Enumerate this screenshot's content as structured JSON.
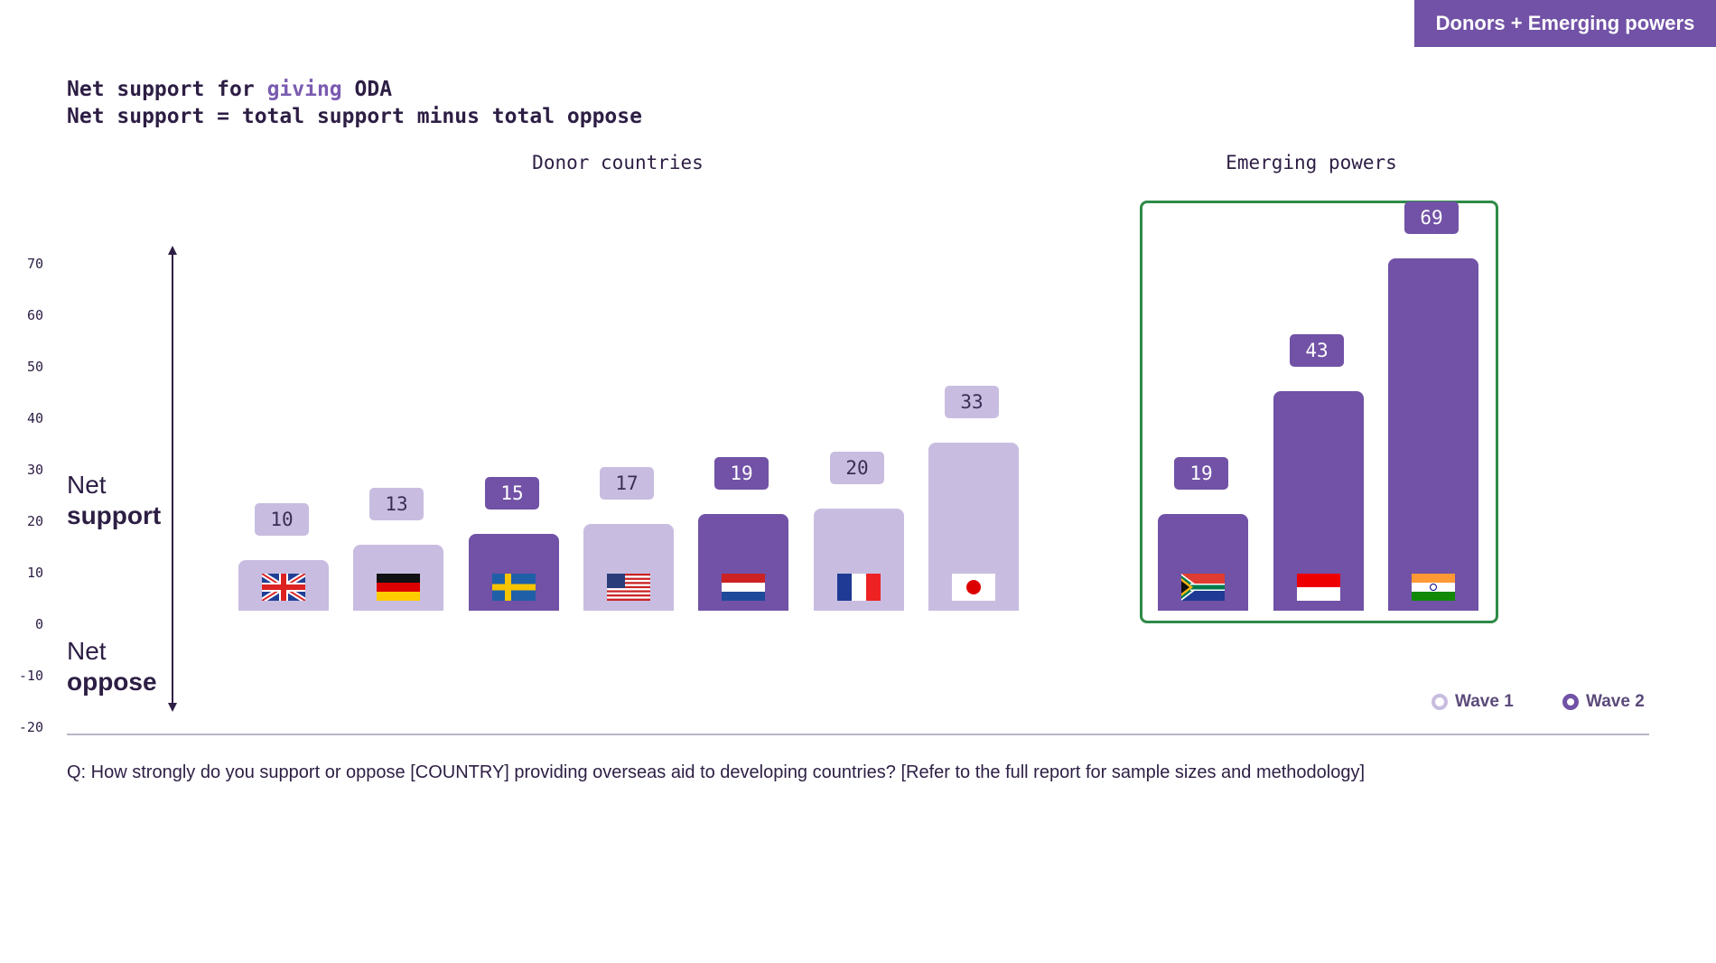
{
  "badge": "Donors + Emerging powers",
  "title": {
    "line1_pre": "Net support for ",
    "line1_hl": "giving",
    "line1_post": " ODA",
    "line2": "Net support = total support minus total oppose"
  },
  "side_labels": {
    "support_1": "Net",
    "support_2": "support",
    "oppose_1": "Net",
    "oppose_2": "oppose"
  },
  "question": "Q: How strongly do you support or oppose [COUNTRY] providing overseas aid to developing countries? [Refer to the full report for sample sizes and methodology]",
  "colors": {
    "wave1": "#c8bde0",
    "wave2": "#7152a6",
    "emerging_box": "#2e8b47"
  },
  "chart_data": {
    "type": "bar",
    "title": "Net support for giving ODA",
    "ylim": [
      -20,
      70
    ],
    "yticks": [
      "70",
      "60",
      "50",
      "40",
      "30",
      "20",
      "10",
      "0",
      "-10",
      "-20"
    ],
    "groups": [
      "Donor countries",
      "Emerging powers"
    ],
    "legend": [
      {
        "name": "Wave 1",
        "color": "#c8bde0"
      },
      {
        "name": "Wave 2",
        "color": "#7152a6"
      }
    ],
    "legend_position": "bottom-right",
    "bars": [
      {
        "country": "UK",
        "flag": "uk-flag",
        "group": 0,
        "value": 10,
        "label": "10",
        "wave": 1
      },
      {
        "country": "Germany",
        "flag": "germany-flag",
        "group": 0,
        "value": 13,
        "label": "13",
        "wave": 1
      },
      {
        "country": "Sweden",
        "flag": "sweden-flag",
        "group": 0,
        "value": 15,
        "label": "15",
        "wave": 2
      },
      {
        "country": "USA",
        "flag": "usa-flag",
        "group": 0,
        "value": 17,
        "label": "17",
        "wave": 1
      },
      {
        "country": "Netherlands",
        "flag": "netherlands-flag",
        "group": 0,
        "value": 19,
        "label": "19",
        "wave": 2
      },
      {
        "country": "France",
        "flag": "france-flag",
        "group": 0,
        "value": 20,
        "label": "20",
        "wave": 1
      },
      {
        "country": "Japan",
        "flag": "japan-flag",
        "group": 0,
        "value": 33,
        "label": "33",
        "wave": 1
      },
      {
        "country": "South Africa",
        "flag": "south-africa-flag",
        "group": 1,
        "value": 19,
        "label": "19",
        "wave": 2
      },
      {
        "country": "Indonesia",
        "flag": "indonesia-flag",
        "group": 1,
        "value": 43,
        "label": "43",
        "wave": 2
      },
      {
        "country": "India",
        "flag": "india-flag",
        "group": 1,
        "value": 69,
        "label": "69",
        "wave": 2
      }
    ]
  }
}
